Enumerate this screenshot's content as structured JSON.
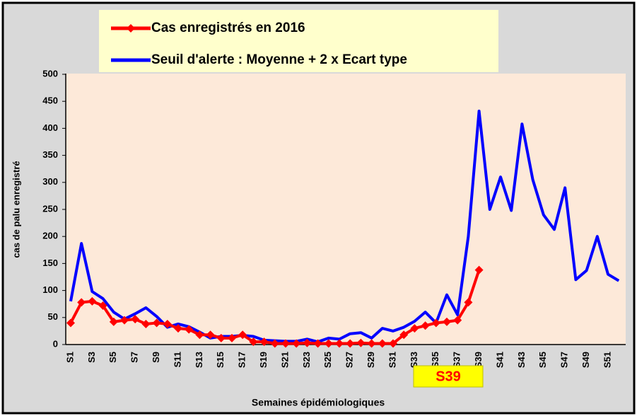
{
  "chart_data": {
    "type": "line",
    "xlabel": "Semaines épidémiologiques",
    "ylabel": "cas de palu enregistré",
    "annotation": "S39",
    "categories": [
      "S1",
      null,
      "S3",
      null,
      "S5",
      null,
      "S7",
      null,
      "S9",
      null,
      "S11",
      null,
      "S13",
      null,
      "S15",
      null,
      "S17",
      null,
      "S19",
      null,
      "S21",
      null,
      "S23",
      null,
      "S25",
      null,
      "S27",
      null,
      "S29",
      null,
      "S31",
      null,
      "S33",
      null,
      "S35",
      null,
      "S37",
      null,
      "S39",
      null,
      "S41",
      null,
      "S43",
      null,
      "S45",
      null,
      "S47",
      null,
      "S49",
      null,
      "S51",
      null
    ],
    "series": [
      {
        "name": "Cas enregistrés en 2016",
        "color": "#ff0000",
        "marker": "diamond",
        "values": [
          40,
          78,
          80,
          72,
          42,
          45,
          47,
          38,
          40,
          38,
          30,
          28,
          18,
          18,
          12,
          12,
          18,
          5,
          5,
          2,
          2,
          2,
          3,
          2,
          2,
          2,
          2,
          3,
          2,
          2,
          2,
          18,
          30,
          35,
          40,
          42,
          45,
          78,
          138,
          null,
          null,
          null,
          null,
          null,
          null,
          null,
          null,
          null,
          null,
          null,
          null,
          null
        ]
      },
      {
        "name": "Seuil d'alerte : Moyenne + 2 x Ecart type",
        "color": "#0000ff",
        "values": [
          80,
          187,
          98,
          85,
          60,
          47,
          57,
          68,
          52,
          32,
          38,
          33,
          23,
          12,
          15,
          15,
          17,
          15,
          8,
          7,
          6,
          6,
          10,
          5,
          12,
          10,
          20,
          22,
          12,
          30,
          25,
          32,
          43,
          60,
          40,
          92,
          55,
          200,
          432,
          250,
          310,
          248,
          408,
          305,
          240,
          213,
          290,
          120,
          137,
          200,
          130,
          118
        ]
      }
    ],
    "ylim": [
      0,
      500
    ],
    "yticks": [
      0,
      50,
      100,
      150,
      200,
      250,
      300,
      350,
      400,
      450,
      500
    ]
  }
}
